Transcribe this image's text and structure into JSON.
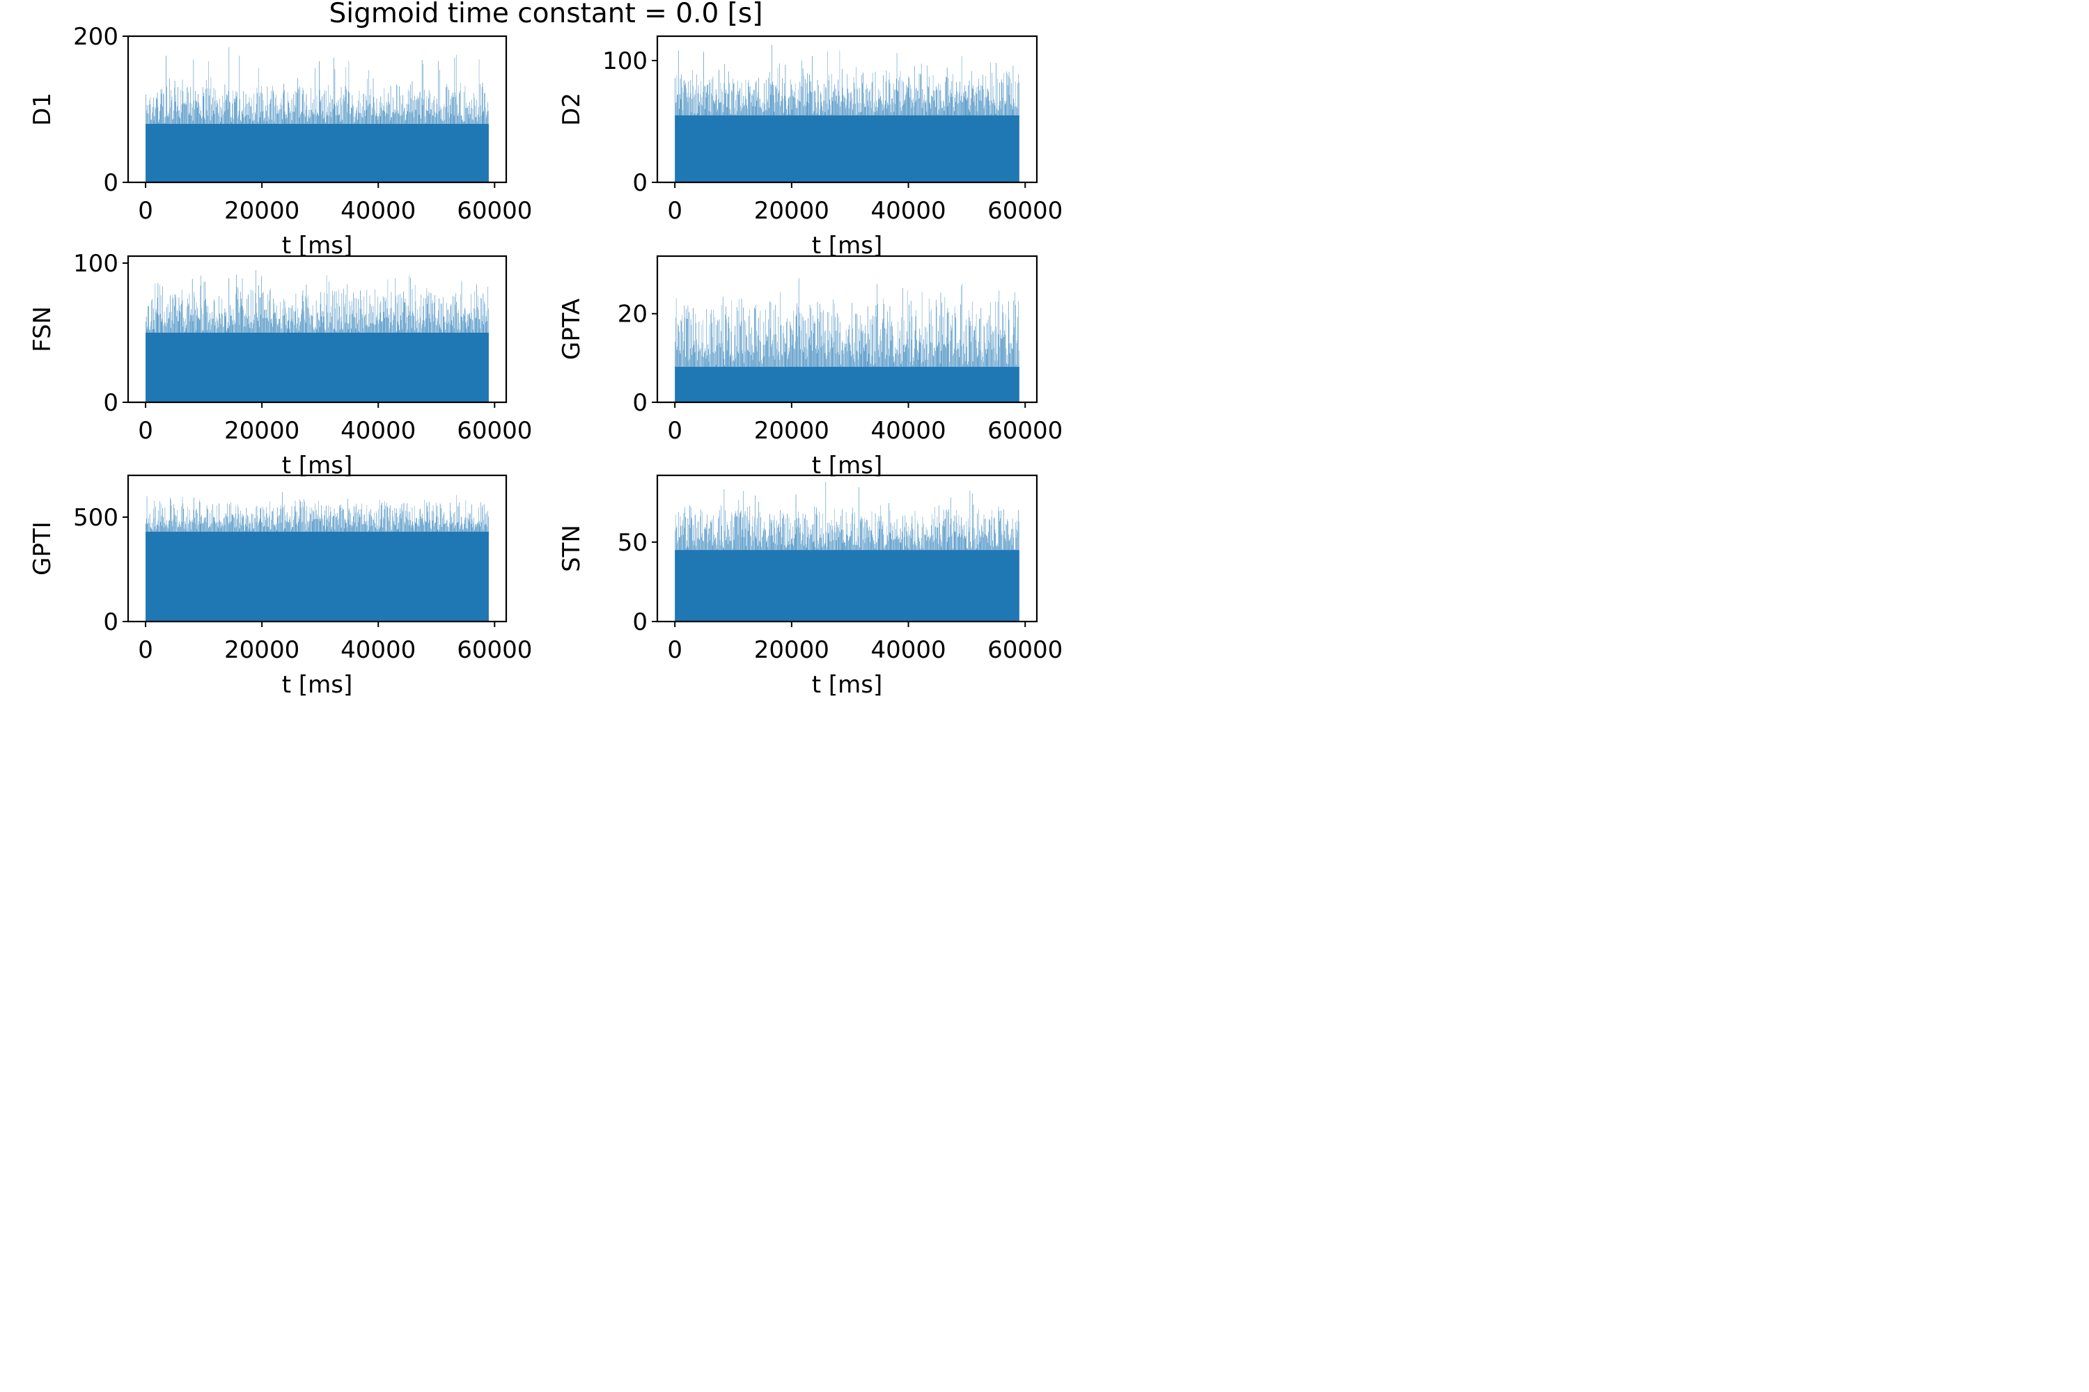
{
  "figure": {
    "title": "Sigmoid time constant = 0.0 [s]",
    "bar_color": "#1f77b4"
  },
  "chart_data": [
    {
      "type": "bar",
      "ylabel": "D1",
      "xlabel": "t [ms]",
      "xlim": [
        -3000,
        62000
      ],
      "ylim": [
        0,
        200
      ],
      "xticks": [
        "0",
        "20000",
        "40000",
        "60000"
      ],
      "yticks": [
        "0",
        "200"
      ],
      "x_range": [
        0,
        59000
      ],
      "bin_width": 100,
      "bars": {
        "base": 80,
        "spread": 45,
        "peak_max": 185,
        "peaks_min": 140
      }
    },
    {
      "type": "bar",
      "ylabel": "D2",
      "xlabel": "t [ms]",
      "xlim": [
        -3000,
        62000
      ],
      "ylim": [
        0,
        120
      ],
      "xticks": [
        "0",
        "20000",
        "40000",
        "60000"
      ],
      "yticks": [
        "0",
        "100"
      ],
      "x_range": [
        0,
        59000
      ],
      "bin_width": 100,
      "bars": {
        "base": 55,
        "spread": 30,
        "peak_max": 113,
        "peaks_min": 85
      }
    },
    {
      "type": "bar",
      "ylabel": "FSN",
      "xlabel": "t [ms]",
      "xlim": [
        -3000,
        62000
      ],
      "ylim": [
        0,
        105
      ],
      "xticks": [
        "0",
        "20000",
        "40000",
        "60000"
      ],
      "yticks": [
        "0",
        "100"
      ],
      "x_range": [
        0,
        59000
      ],
      "bin_width": 100,
      "bars": {
        "base": 50,
        "spread": 25,
        "peak_max": 95,
        "peaks_min": 75
      }
    },
    {
      "type": "bar",
      "ylabel": "GPTA",
      "xlabel": "t [ms]",
      "xlim": [
        -3000,
        62000
      ],
      "ylim": [
        0,
        33
      ],
      "xticks": [
        "0",
        "20000",
        "40000",
        "60000"
      ],
      "yticks": [
        "0",
        "20"
      ],
      "x_range": [
        0,
        59000
      ],
      "bin_width": 100,
      "bars": {
        "base": 8,
        "spread": 12,
        "peak_max": 28,
        "peaks_min": 20
      }
    },
    {
      "type": "bar",
      "ylabel": "GPTI",
      "xlabel": "t [ms]",
      "xlim": [
        -3000,
        62000
      ],
      "ylim": [
        0,
        700
      ],
      "xticks": [
        "0",
        "20000",
        "40000",
        "60000"
      ],
      "yticks": [
        "0",
        "500"
      ],
      "x_range": [
        0,
        59000
      ],
      "bin_width": 100,
      "bars": {
        "base": 430,
        "spread": 120,
        "peak_max": 620,
        "peaks_min": 540
      }
    },
    {
      "type": "bar",
      "ylabel": "STN",
      "xlabel": "t [ms]",
      "xlim": [
        -3000,
        62000
      ],
      "ylim": [
        0,
        92
      ],
      "xticks": [
        "0",
        "20000",
        "40000",
        "60000"
      ],
      "yticks": [
        "0",
        "50"
      ],
      "x_range": [
        0,
        59000
      ],
      "bin_width": 100,
      "bars": {
        "base": 45,
        "spread": 22,
        "peak_max": 88,
        "peaks_min": 65
      }
    }
  ]
}
